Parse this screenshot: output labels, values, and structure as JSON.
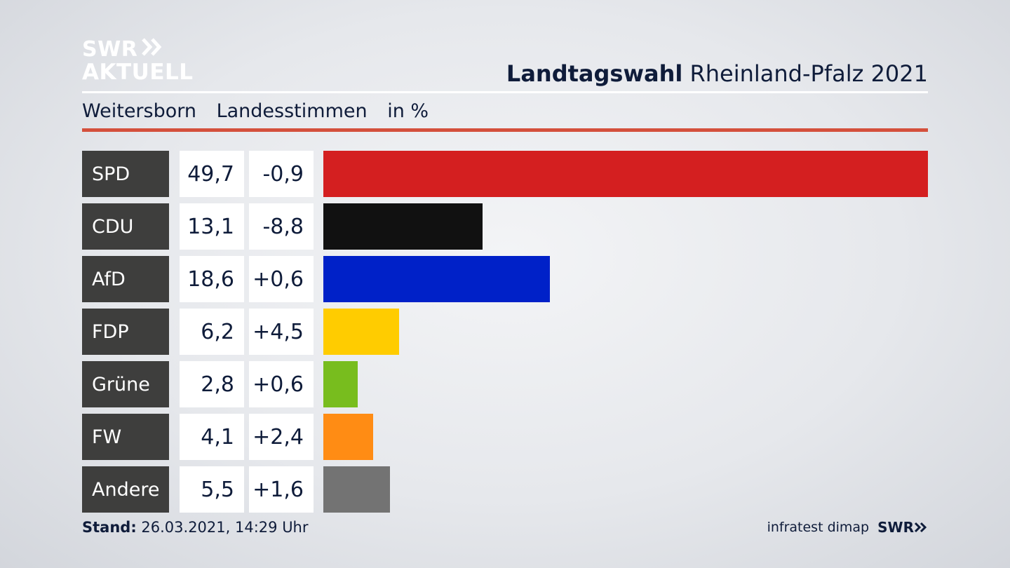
{
  "brand": {
    "line1": "SWR",
    "line2": "AKTUELL",
    "arrow_icon": "double-chevron-right-icon"
  },
  "header": {
    "title_bold": "Landtagswahl",
    "title_rest": "Rheinland-Pfalz 2021"
  },
  "subheader": {
    "place": "Weitersborn",
    "vote_type": "Landesstimmen",
    "unit": "in %"
  },
  "chart_data": {
    "type": "bar",
    "orientation": "horizontal",
    "categories": [
      "SPD",
      "CDU",
      "AfD",
      "FDP",
      "Grüne",
      "FW",
      "Andere"
    ],
    "values": [
      49.7,
      13.1,
      18.6,
      6.2,
      2.8,
      4.1,
      5.5
    ],
    "value_labels": [
      "49,7",
      "13,1",
      "18,6",
      "6,2",
      "2,8",
      "4,1",
      "5,5"
    ],
    "changes": [
      "-0,9",
      "-8,8",
      "+0,6",
      "+4,5",
      "+0,6",
      "+2,4",
      "+1,6"
    ],
    "colors": [
      "#d41f20",
      "#111111",
      "#0021c8",
      "#ffcc00",
      "#78bd1e",
      "#ff8c14",
      "#737373"
    ],
    "xlim": [
      0,
      49.7
    ]
  },
  "footer": {
    "stand_label": "Stand:",
    "stand_value": "26.03.2021, 14:29 Uhr",
    "source": "infratest dimap",
    "logo": "SWR"
  }
}
